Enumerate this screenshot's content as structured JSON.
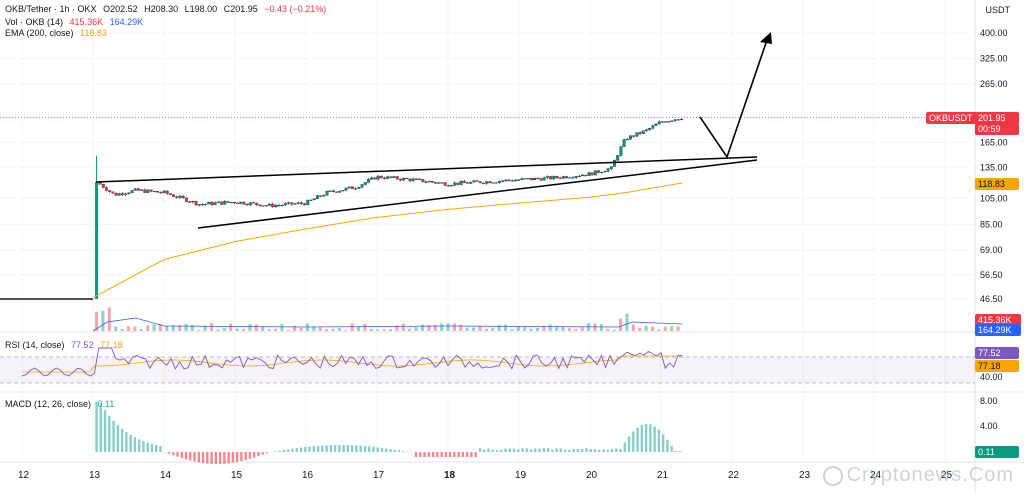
{
  "header": {
    "symbol": "OKB/Tether · 1h · OKX",
    "open": "O202.52",
    "high": "H208.30",
    "low": "L198.00",
    "close": "C201.95",
    "change": "−0.43 (−0.21%)",
    "currency": "USDT"
  },
  "volume_legend": {
    "label": "Vol · OKB (14)",
    "v1": "415.36K",
    "v2": "164.29K"
  },
  "ema_legend": {
    "label": "EMA (200, close)",
    "value": "118.83"
  },
  "rsi_legend": {
    "label": "RSI (14, close)",
    "v1": "77.52",
    "v2": "77.18"
  },
  "macd_legend": {
    "label": "MACD (12, 26, close)",
    "v1": "0.11"
  },
  "price_tags": {
    "symbol": "OKBUSDT",
    "last": "201.95",
    "countdown": "00:59",
    "ema": "118.83",
    "vol1": "415.36K",
    "vol2": "164.29K",
    "rsi1": "77.52",
    "rsi2": "77.18",
    "macd": "0.11"
  },
  "price_axis": [
    "400.00",
    "325.00",
    "265.00",
    "165.00",
    "135.00",
    "105.00",
    "85.00",
    "69.00",
    "56.50",
    "46.50"
  ],
  "rsi_axis": [
    "40.00"
  ],
  "macd_axis": [
    "8.00",
    "4.00"
  ],
  "date_axis": [
    "12",
    "13",
    "14",
    "15",
    "16",
    "17",
    "18",
    "19",
    "20",
    "21",
    "22",
    "23",
    "24",
    "25"
  ],
  "watermark": "Cryptonews.Com",
  "colors": {
    "up": "#089981",
    "down": "#f23645",
    "ema": "#f7a600",
    "rsi": "#7e57c2",
    "vol_line": "#2962ff"
  },
  "chart_data": {
    "type": "candlestick",
    "price_scale": "log",
    "x_dates": [
      "12",
      "13",
      "14",
      "15",
      "16",
      "17",
      "18",
      "19",
      "20",
      "21"
    ],
    "close_path": [
      {
        "day": 12.0,
        "close": 46.5
      },
      {
        "day": 13.0,
        "close": 46.5
      },
      {
        "day": 13.05,
        "close": 120
      },
      {
        "day": 13.3,
        "close": 108
      },
      {
        "day": 13.6,
        "close": 112
      },
      {
        "day": 14.0,
        "close": 110
      },
      {
        "day": 14.5,
        "close": 100
      },
      {
        "day": 15.0,
        "close": 102
      },
      {
        "day": 15.5,
        "close": 99
      },
      {
        "day": 16.0,
        "close": 101
      },
      {
        "day": 16.3,
        "close": 110
      },
      {
        "day": 16.7,
        "close": 115
      },
      {
        "day": 17.0,
        "close": 125
      },
      {
        "day": 17.5,
        "close": 122
      },
      {
        "day": 18.0,
        "close": 118
      },
      {
        "day": 18.5,
        "close": 120
      },
      {
        "day": 19.0,
        "close": 122
      },
      {
        "day": 19.5,
        "close": 124
      },
      {
        "day": 20.0,
        "close": 128
      },
      {
        "day": 20.3,
        "close": 134
      },
      {
        "day": 20.5,
        "close": 170
      },
      {
        "day": 20.8,
        "close": 182
      },
      {
        "day": 21.0,
        "close": 195
      },
      {
        "day": 21.3,
        "close": 201.95
      }
    ],
    "ema200": [
      {
        "day": 13.0,
        "value": 47
      },
      {
        "day": 14.0,
        "value": 64
      },
      {
        "day": 15.0,
        "value": 74
      },
      {
        "day": 16.0,
        "value": 82
      },
      {
        "day": 17.0,
        "value": 90
      },
      {
        "day": 18.0,
        "value": 96
      },
      {
        "day": 19.0,
        "value": 101
      },
      {
        "day": 20.0,
        "value": 106
      },
      {
        "day": 20.5,
        "value": 110
      },
      {
        "day": 21.3,
        "value": 118.83
      }
    ],
    "last_close": 201.95,
    "ema_last": 118.83,
    "volume_last": [
      "415.36K",
      "164.29K"
    ],
    "rsi_last": [
      77.52,
      77.18
    ],
    "macd_last": 0.11
  }
}
